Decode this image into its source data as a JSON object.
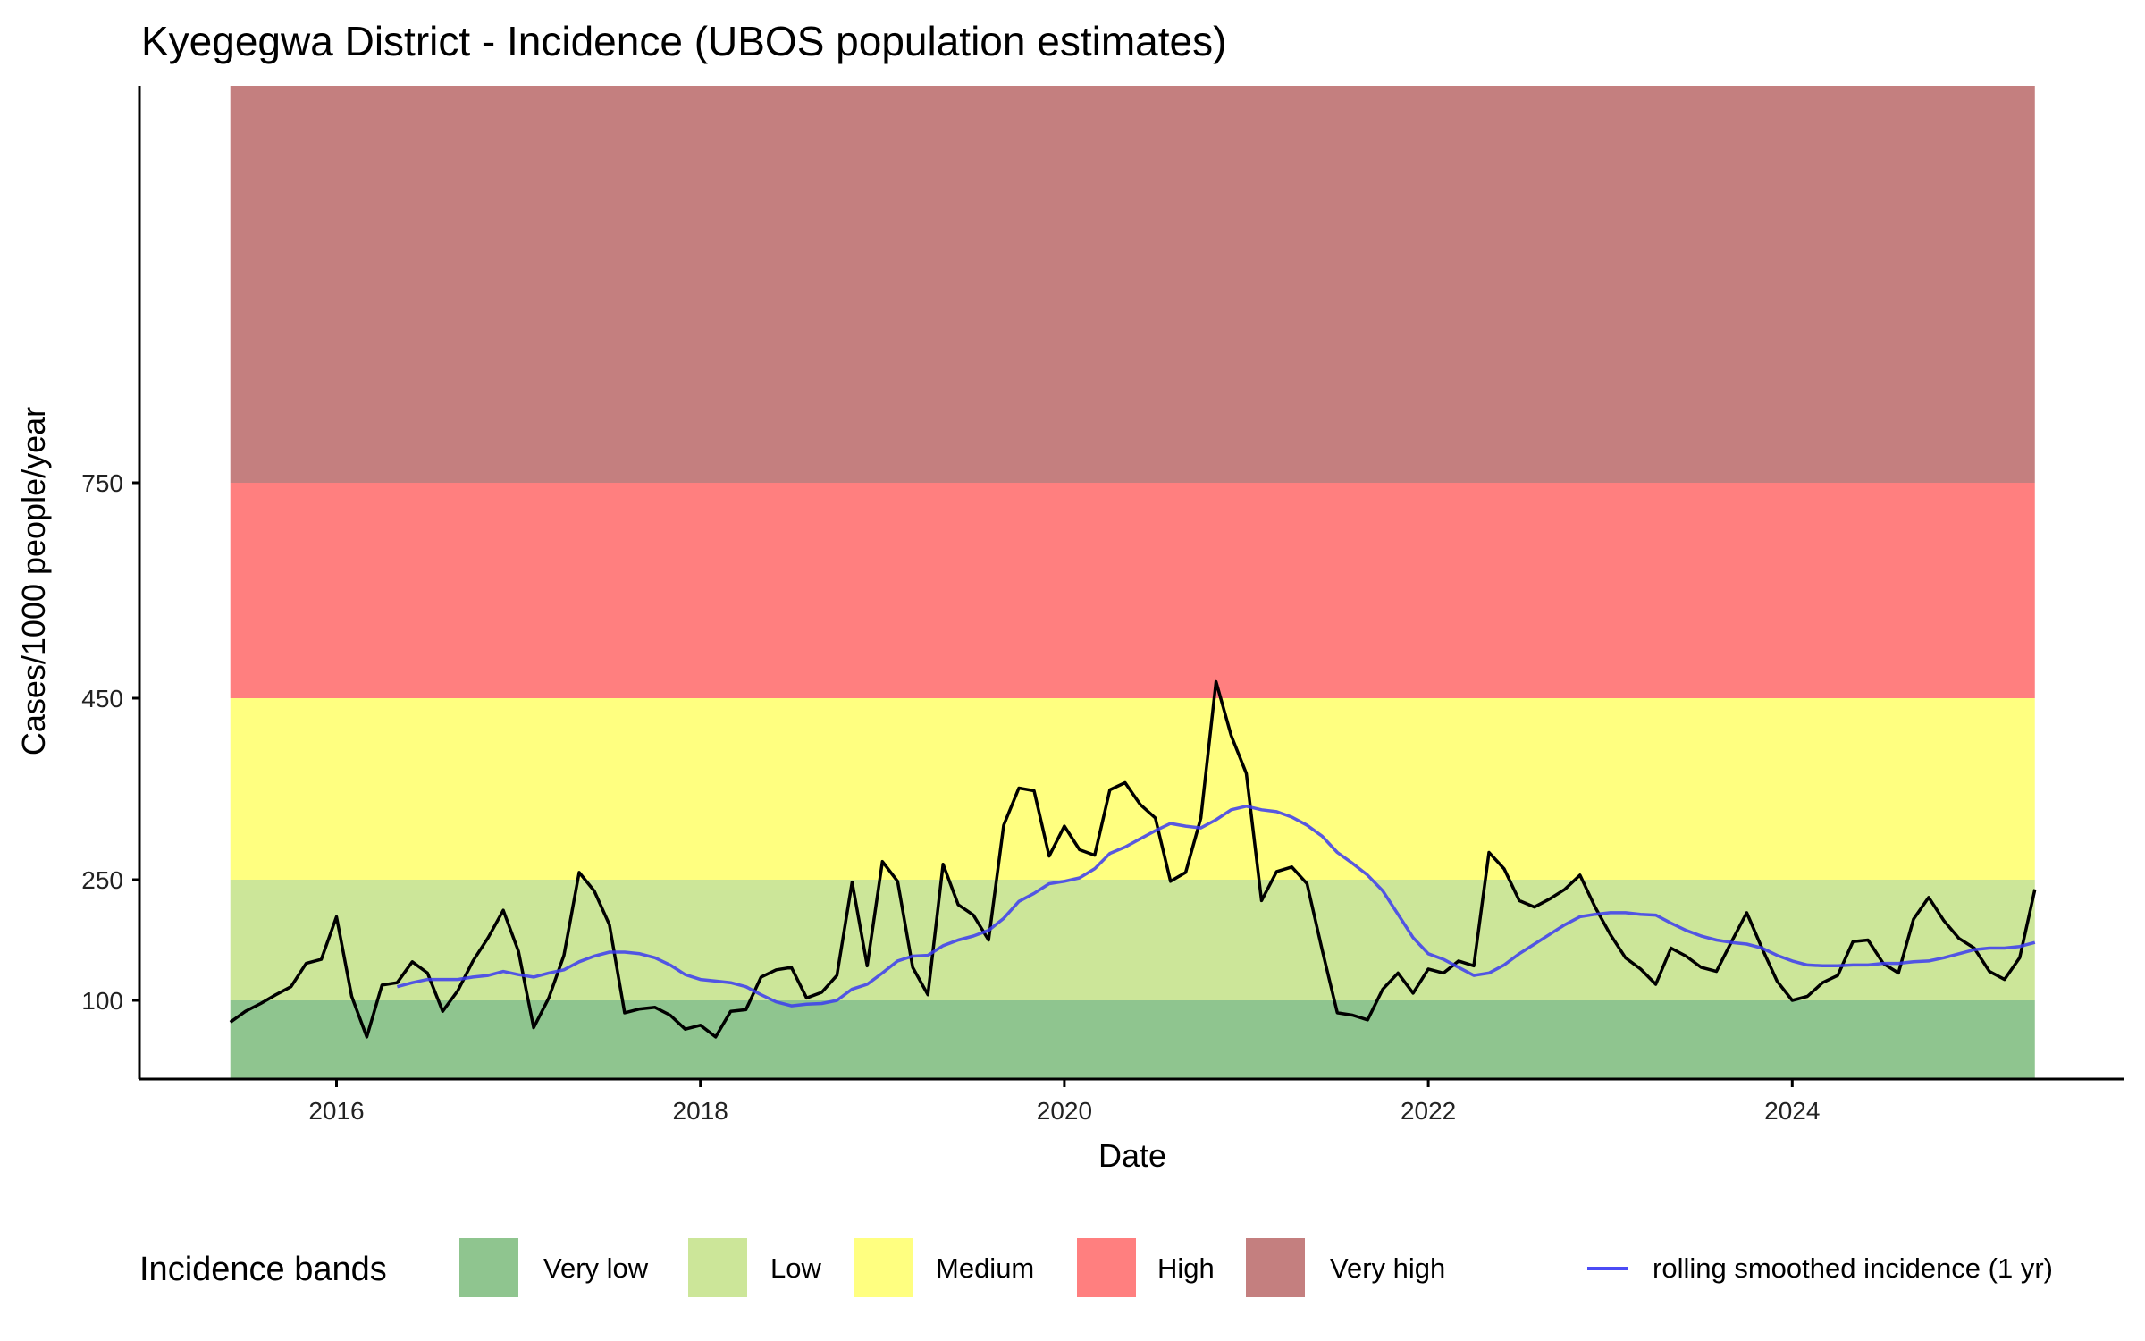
{
  "title": "Kyegegwa District - Incidence (UBOS population estimates)",
  "chart_data": {
    "type": "line",
    "title": "Kyegegwa District - Incidence (UBOS population estimates)",
    "xlabel": "Date",
    "ylabel": "Cases/1000 people/year",
    "x_start": "2015-06",
    "x_end": "2025-05",
    "x_step": "month",
    "x_ticks": [
      "2016",
      "2018",
      "2020",
      "2022",
      "2024"
    ],
    "y_ticks": [
      100,
      250,
      450,
      750
    ],
    "grid": false,
    "legend_placement": "bottom",
    "bands": [
      {
        "name": "Very low",
        "from": 0,
        "to": 100,
        "color": "#8FC58F"
      },
      {
        "name": "Low",
        "from": 100,
        "to": 250,
        "color": "#CCE699"
      },
      {
        "name": "Medium",
        "from": 250,
        "to": 450,
        "color": "#FFFF80"
      },
      {
        "name": "High",
        "from": 450,
        "to": 750,
        "color": "#FF7F7F"
      },
      {
        "name": "Very high",
        "from": 750,
        "to": null,
        "color": "#C47F7F"
      }
    ],
    "series": [
      {
        "name": "incidence",
        "color": "#000000",
        "start_index": 0,
        "values": [
          72,
          86,
          96,
          107,
          117,
          146,
          151,
          204,
          105,
          53,
          119,
          122,
          148,
          134,
          86,
          112,
          149,
          178,
          212,
          161,
          65,
          103,
          156,
          258,
          236,
          194,
          84,
          89,
          91,
          81,
          63,
          68,
          53,
          86,
          88,
          129,
          138,
          141,
          103,
          110,
          131,
          247,
          143,
          270,
          248,
          141,
          107,
          267,
          219,
          206,
          175,
          310,
          351,
          348,
          276,
          309,
          283,
          277,
          349,
          357,
          333,
          318,
          248,
          258,
          318,
          473,
          409,
          367,
          224,
          259,
          264,
          245,
          163,
          84,
          81,
          75,
          114,
          134,
          109,
          139,
          134,
          149,
          143,
          280,
          262,
          224,
          216,
          226,
          238,
          255,
          216,
          182,
          153,
          139,
          120,
          165,
          155,
          141,
          136,
          173,
          209,
          165,
          124,
          100,
          105,
          122,
          131,
          173,
          175,
          146,
          134,
          201,
          228,
          199,
          177,
          165,
          136,
          126,
          153,
          238
        ]
      },
      {
        "name": "rolling smoothed incidence (1 yr)",
        "color": "#3B3BF0",
        "start_index": 11,
        "values": [
          117,
          122,
          126,
          126,
          126,
          129,
          131,
          136,
          132,
          129,
          134,
          138,
          148,
          155,
          160,
          160,
          158,
          153,
          144,
          132,
          126,
          124,
          122,
          117,
          107,
          98,
          93,
          95,
          96,
          100,
          114,
          120,
          134,
          149,
          155,
          156,
          168,
          175,
          180,
          187,
          202,
          223,
          233,
          245,
          248,
          252,
          262,
          279,
          286,
          295,
          304,
          312,
          309,
          307,
          316,
          327,
          331,
          327,
          325,
          319,
          310,
          298,
          280,
          268,
          255,
          236,
          207,
          178,
          158,
          151,
          141,
          131,
          134,
          144,
          158,
          170,
          182,
          194,
          204,
          207,
          209,
          209,
          207,
          206,
          196,
          187,
          180,
          175,
          172,
          170,
          165,
          156,
          149,
          144,
          143,
          143,
          144,
          144,
          146,
          146,
          148,
          149,
          153,
          158,
          163,
          165,
          165,
          167,
          172
        ]
      }
    ]
  },
  "legend": {
    "title": "Incidence bands",
    "items": [
      {
        "label": "Very low",
        "color": "#8FC58F"
      },
      {
        "label": "Low",
        "color": "#CCE699"
      },
      {
        "label": "Medium",
        "color": "#FFFF80"
      },
      {
        "label": "High",
        "color": "#FF7F7F"
      },
      {
        "label": "Very high",
        "color": "#C47F7F"
      }
    ],
    "line_label": "rolling smoothed incidence (1 yr)",
    "line_color": "#4B4BF5"
  }
}
